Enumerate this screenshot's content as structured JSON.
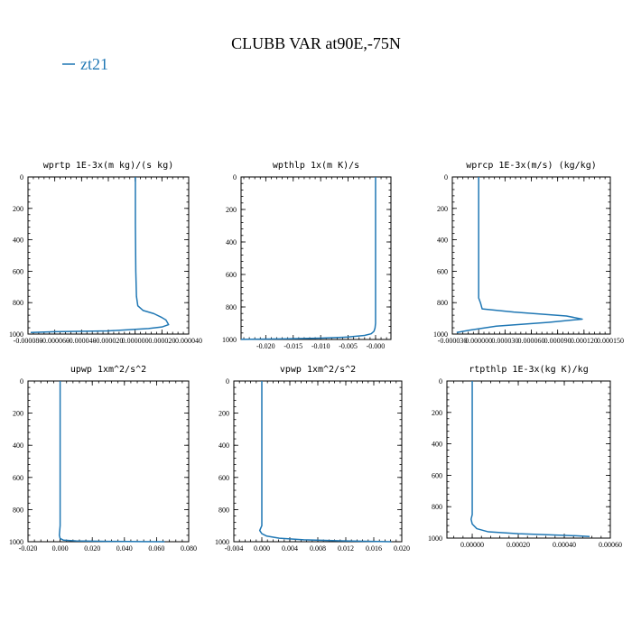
{
  "title": "CLUBB VAR at90E,-75N",
  "legend": {
    "label": "zt21",
    "color": "#1f77b4"
  },
  "chart_data": [
    {
      "type": "line",
      "title": "wprtp  1E-3x(m kg)/(s kg)",
      "xlim": [
        -8e-05,
        4e-05
      ],
      "ylim": [
        1000,
        0
      ],
      "xtick_values": [
        -8e-05,
        -6e-05,
        -4e-05,
        -2e-05,
        0.0,
        2e-05,
        4e-05
      ],
      "xtick_labels": [
        "-0.000080",
        "-0.000060",
        "-0.000040",
        "-0.000020",
        "0.000000",
        "0.000020",
        "0.000040"
      ],
      "ytick_values": [
        0,
        200,
        400,
        600,
        800,
        1000
      ],
      "ytick_labels": [
        "0",
        "200",
        "400",
        "600",
        "800",
        "1000"
      ],
      "series": [
        {
          "color": "#1f77b4",
          "x": [
            2e-07,
            2e-07,
            5e-07,
            1e-06,
            2e-06,
            6e-06,
            1.4e-05,
            2e-05,
            2.3e-05,
            2.5e-05,
            2e-05,
            1e-05,
            -2e-05,
            -6e-05,
            -7.8e-05
          ],
          "y": [
            0,
            300,
            600,
            760,
            820,
            850,
            870,
            895,
            910,
            940,
            955,
            965,
            980,
            985,
            990
          ]
        }
      ]
    },
    {
      "type": "line",
      "title": "wpthlp  1x(m K)/s",
      "xlim": [
        -0.0245,
        0.0028
      ],
      "ylim": [
        1000,
        0
      ],
      "xtick_values": [
        -0.02,
        -0.015,
        -0.01,
        -0.005,
        0.0
      ],
      "xtick_labels": [
        "-0.020",
        "-0.015",
        "-0.010",
        "-0.005",
        "-0.000"
      ],
      "ytick_values": [
        0,
        200,
        400,
        600,
        800,
        1000
      ],
      "ytick_labels": [
        "0",
        "200",
        "400",
        "600",
        "800",
        "1000"
      ],
      "series": [
        {
          "color": "#1f77b4",
          "x": [
            0.0,
            0.0,
            0.0,
            -0.0001,
            -0.0003,
            -0.0008,
            -0.002,
            -0.005,
            -0.01,
            -0.016,
            -0.021,
            -0.0245
          ],
          "y": [
            0,
            400,
            900,
            930,
            950,
            965,
            975,
            985,
            992,
            996,
            998,
            999
          ]
        }
      ]
    },
    {
      "type": "line",
      "title": "wprcp  1E-3x(m/s) (kg/kg)",
      "xlim": [
        -3e-05,
        0.00015
      ],
      "ylim": [
        1000,
        0
      ],
      "xtick_values": [
        -3e-05,
        0.0,
        3e-05,
        6e-05,
        9e-05,
        0.00012,
        0.00015
      ],
      "xtick_labels": [
        "-0.000030",
        "0.000000",
        "0.000030",
        "0.000060",
        "0.000090",
        "0.000120",
        "0.000150"
      ],
      "ytick_values": [
        0,
        200,
        400,
        600,
        800,
        1000
      ],
      "ytick_labels": [
        "0",
        "200",
        "400",
        "600",
        "800",
        "1000"
      ],
      "series": [
        {
          "color": "#1f77b4",
          "x": [
            0.0,
            0.0,
            0.0,
            2e-06,
            4e-06,
            4e-05,
            0.0001,
            0.000118,
            8e-05,
            2e-05,
            -1e-05,
            -2.5e-05
          ],
          "y": [
            0,
            500,
            770,
            800,
            840,
            860,
            885,
            905,
            925,
            950,
            975,
            990
          ]
        }
      ]
    },
    {
      "type": "line",
      "title": "upwp  1xm^2/s^2",
      "xlim": [
        -0.02,
        0.08
      ],
      "ylim": [
        1000,
        0
      ],
      "xtick_values": [
        -0.02,
        0.0,
        0.02,
        0.04,
        0.06,
        0.08
      ],
      "xtick_labels": [
        "-0.020",
        "0.000",
        "0.020",
        "0.040",
        "0.060",
        "0.080"
      ],
      "ytick_values": [
        0,
        200,
        400,
        600,
        800,
        1000
      ],
      "ytick_labels": [
        "0",
        "200",
        "400",
        "600",
        "800",
        "1000"
      ],
      "series": [
        {
          "color": "#1f77b4",
          "x": [
            0.0,
            0.0,
            -0.0005,
            0.0,
            0.002,
            0.01,
            0.03,
            0.05,
            0.065
          ],
          "y": [
            0,
            900,
            960,
            980,
            990,
            995,
            998,
            999,
            1000
          ]
        }
      ]
    },
    {
      "type": "line",
      "title": "vpwp  1xm^2/s^2",
      "xlim": [
        -0.004,
        0.02
      ],
      "ylim": [
        1000,
        0
      ],
      "xtick_values": [
        -0.004,
        0.0,
        0.004,
        0.008,
        0.012,
        0.016,
        0.02
      ],
      "xtick_labels": [
        "-0.004",
        "0.000",
        "0.004",
        "0.008",
        "0.012",
        "0.016",
        "0.020"
      ],
      "ytick_values": [
        0,
        200,
        400,
        600,
        800,
        1000
      ],
      "ytick_labels": [
        "0",
        "200",
        "400",
        "600",
        "800",
        "1000"
      ],
      "series": [
        {
          "color": "#1f77b4",
          "x": [
            0.0,
            0.0,
            -0.0003,
            0.0,
            0.0007,
            0.0025,
            0.006,
            0.012,
            0.0185
          ],
          "y": [
            0,
            900,
            930,
            950,
            965,
            978,
            988,
            995,
            1000
          ]
        }
      ]
    },
    {
      "type": "line",
      "title": "rtpthlp  1E-3x(kg K)/kg",
      "xlim": [
        -0.00011,
        0.0006
      ],
      "ylim": [
        1000,
        0
      ],
      "xtick_values": [
        0.0,
        0.0002,
        0.0004,
        0.0006
      ],
      "xtick_labels": [
        "0.00000",
        "0.00020",
        "0.00040",
        "0.00060"
      ],
      "ytick_values": [
        0,
        200,
        400,
        600,
        800,
        1000
      ],
      "ytick_labels": [
        "0",
        "200",
        "400",
        "600",
        "800",
        "1000"
      ],
      "series": [
        {
          "color": "#1f77b4",
          "x": [
            0.0,
            0.0,
            -5e-06,
            0.0,
            2e-05,
            7e-05,
            0.0002,
            0.00035,
            0.00045,
            0.00051
          ],
          "y": [
            0,
            850,
            880,
            910,
            940,
            960,
            972,
            980,
            985,
            990
          ]
        }
      ]
    }
  ]
}
